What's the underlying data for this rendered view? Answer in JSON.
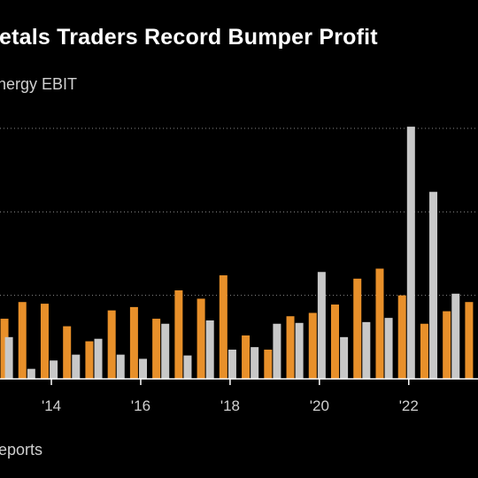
{
  "title": "Metals Traders Record Bumper Profit",
  "subtitle": "Energy EBIT",
  "source": "eports",
  "chart_data": {
    "type": "bar",
    "ylim": [
      0,
      3
    ],
    "grid": true,
    "x_tick_labels": [
      "'14",
      "'16",
      "'18",
      "'20",
      "'22"
    ],
    "x_tick_positions": [
      2014,
      2016,
      2018,
      2020,
      2022
    ],
    "x_range": [
      2012.85,
      2023.55
    ],
    "series": [
      {
        "color": "#e8902a",
        "points": [
          {
            "x": 2012.95,
            "y": 0.72
          },
          {
            "x": 2013.35,
            "y": 0.92
          },
          {
            "x": 2013.85,
            "y": 0.9
          },
          {
            "x": 2014.35,
            "y": 0.63
          },
          {
            "x": 2014.85,
            "y": 0.45
          },
          {
            "x": 2015.35,
            "y": 0.82
          },
          {
            "x": 2015.85,
            "y": 0.86
          },
          {
            "x": 2016.35,
            "y": 0.72
          },
          {
            "x": 2016.85,
            "y": 1.06
          },
          {
            "x": 2017.35,
            "y": 0.96
          },
          {
            "x": 2017.85,
            "y": 1.24
          },
          {
            "x": 2018.35,
            "y": 0.52
          },
          {
            "x": 2018.85,
            "y": 0.35
          },
          {
            "x": 2019.35,
            "y": 0.75
          },
          {
            "x": 2019.85,
            "y": 0.79
          },
          {
            "x": 2020.35,
            "y": 0.89
          },
          {
            "x": 2020.85,
            "y": 1.2
          },
          {
            "x": 2021.35,
            "y": 1.32
          },
          {
            "x": 2021.85,
            "y": 1.0
          },
          {
            "x": 2022.35,
            "y": 0.66
          },
          {
            "x": 2022.85,
            "y": 0.81
          },
          {
            "x": 2023.35,
            "y": 0.92
          }
        ]
      },
      {
        "color": "#c8c8c8",
        "points": [
          {
            "x": 2013.05,
            "y": 0.5
          },
          {
            "x": 2013.55,
            "y": 0.12
          },
          {
            "x": 2014.05,
            "y": 0.22
          },
          {
            "x": 2014.55,
            "y": 0.29
          },
          {
            "x": 2015.05,
            "y": 0.48
          },
          {
            "x": 2015.55,
            "y": 0.29
          },
          {
            "x": 2016.05,
            "y": 0.24
          },
          {
            "x": 2016.55,
            "y": 0.66
          },
          {
            "x": 2017.05,
            "y": 0.28
          },
          {
            "x": 2017.55,
            "y": 0.7
          },
          {
            "x": 2018.05,
            "y": 0.35
          },
          {
            "x": 2018.55,
            "y": 0.38
          },
          {
            "x": 2019.05,
            "y": 0.66
          },
          {
            "x": 2019.55,
            "y": 0.67
          },
          {
            "x": 2020.05,
            "y": 1.28
          },
          {
            "x": 2020.55,
            "y": 0.5
          },
          {
            "x": 2021.05,
            "y": 0.68
          },
          {
            "x": 2021.55,
            "y": 0.73
          },
          {
            "x": 2022.05,
            "y": 3.02
          },
          {
            "x": 2022.55,
            "y": 2.24
          },
          {
            "x": 2023.05,
            "y": 1.02
          }
        ]
      }
    ]
  }
}
